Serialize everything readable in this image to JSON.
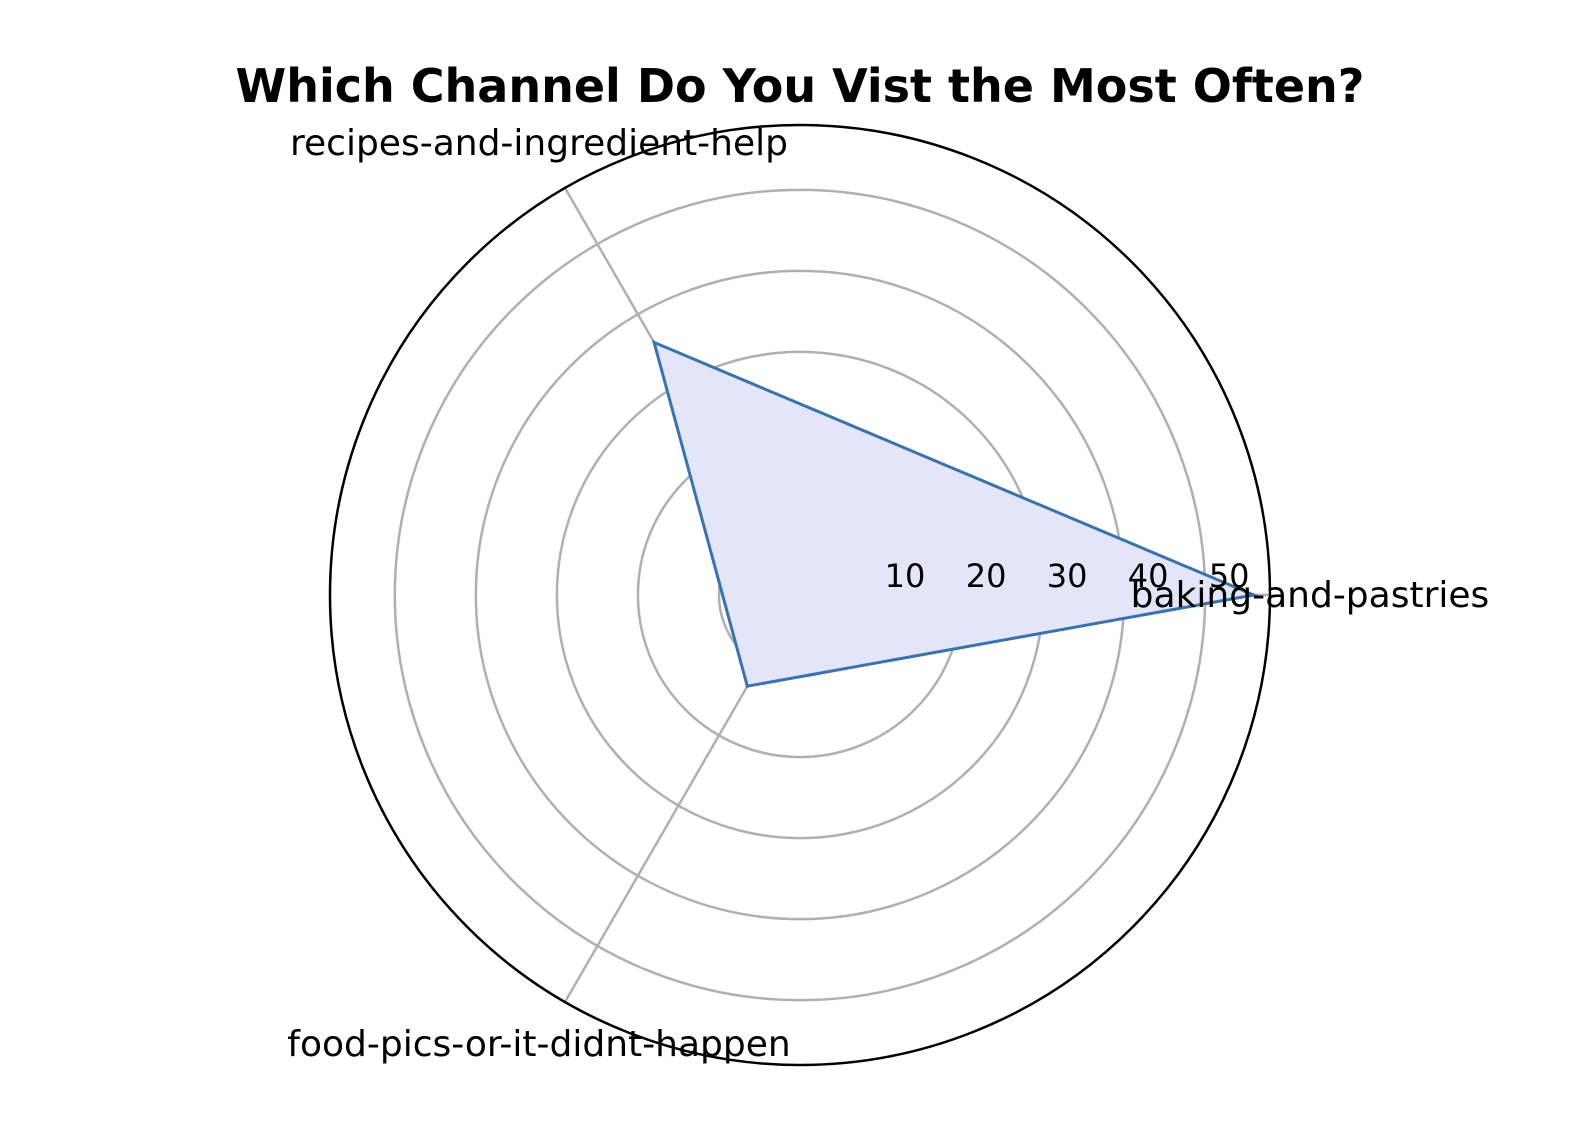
{
  "chart_data": {
    "type": "radar",
    "title": "Which Channel Do You Vist the Most Often?",
    "categories": [
      "baking-and-pastries",
      "recipes-and-ingredient-help",
      "food-pics-or-it-didnt-happen"
    ],
    "series": [
      {
        "values": [
          56,
          36,
          13
        ]
      }
    ],
    "radial_ticks": [
      10,
      20,
      30,
      40,
      50
    ],
    "rlim": [
      0,
      58
    ],
    "grid": true,
    "legend": "none",
    "colors": {
      "line": "#3a72ae",
      "fill": "#e3e6f9",
      "grid": "#b0b0b0",
      "frame": "#000000"
    }
  }
}
